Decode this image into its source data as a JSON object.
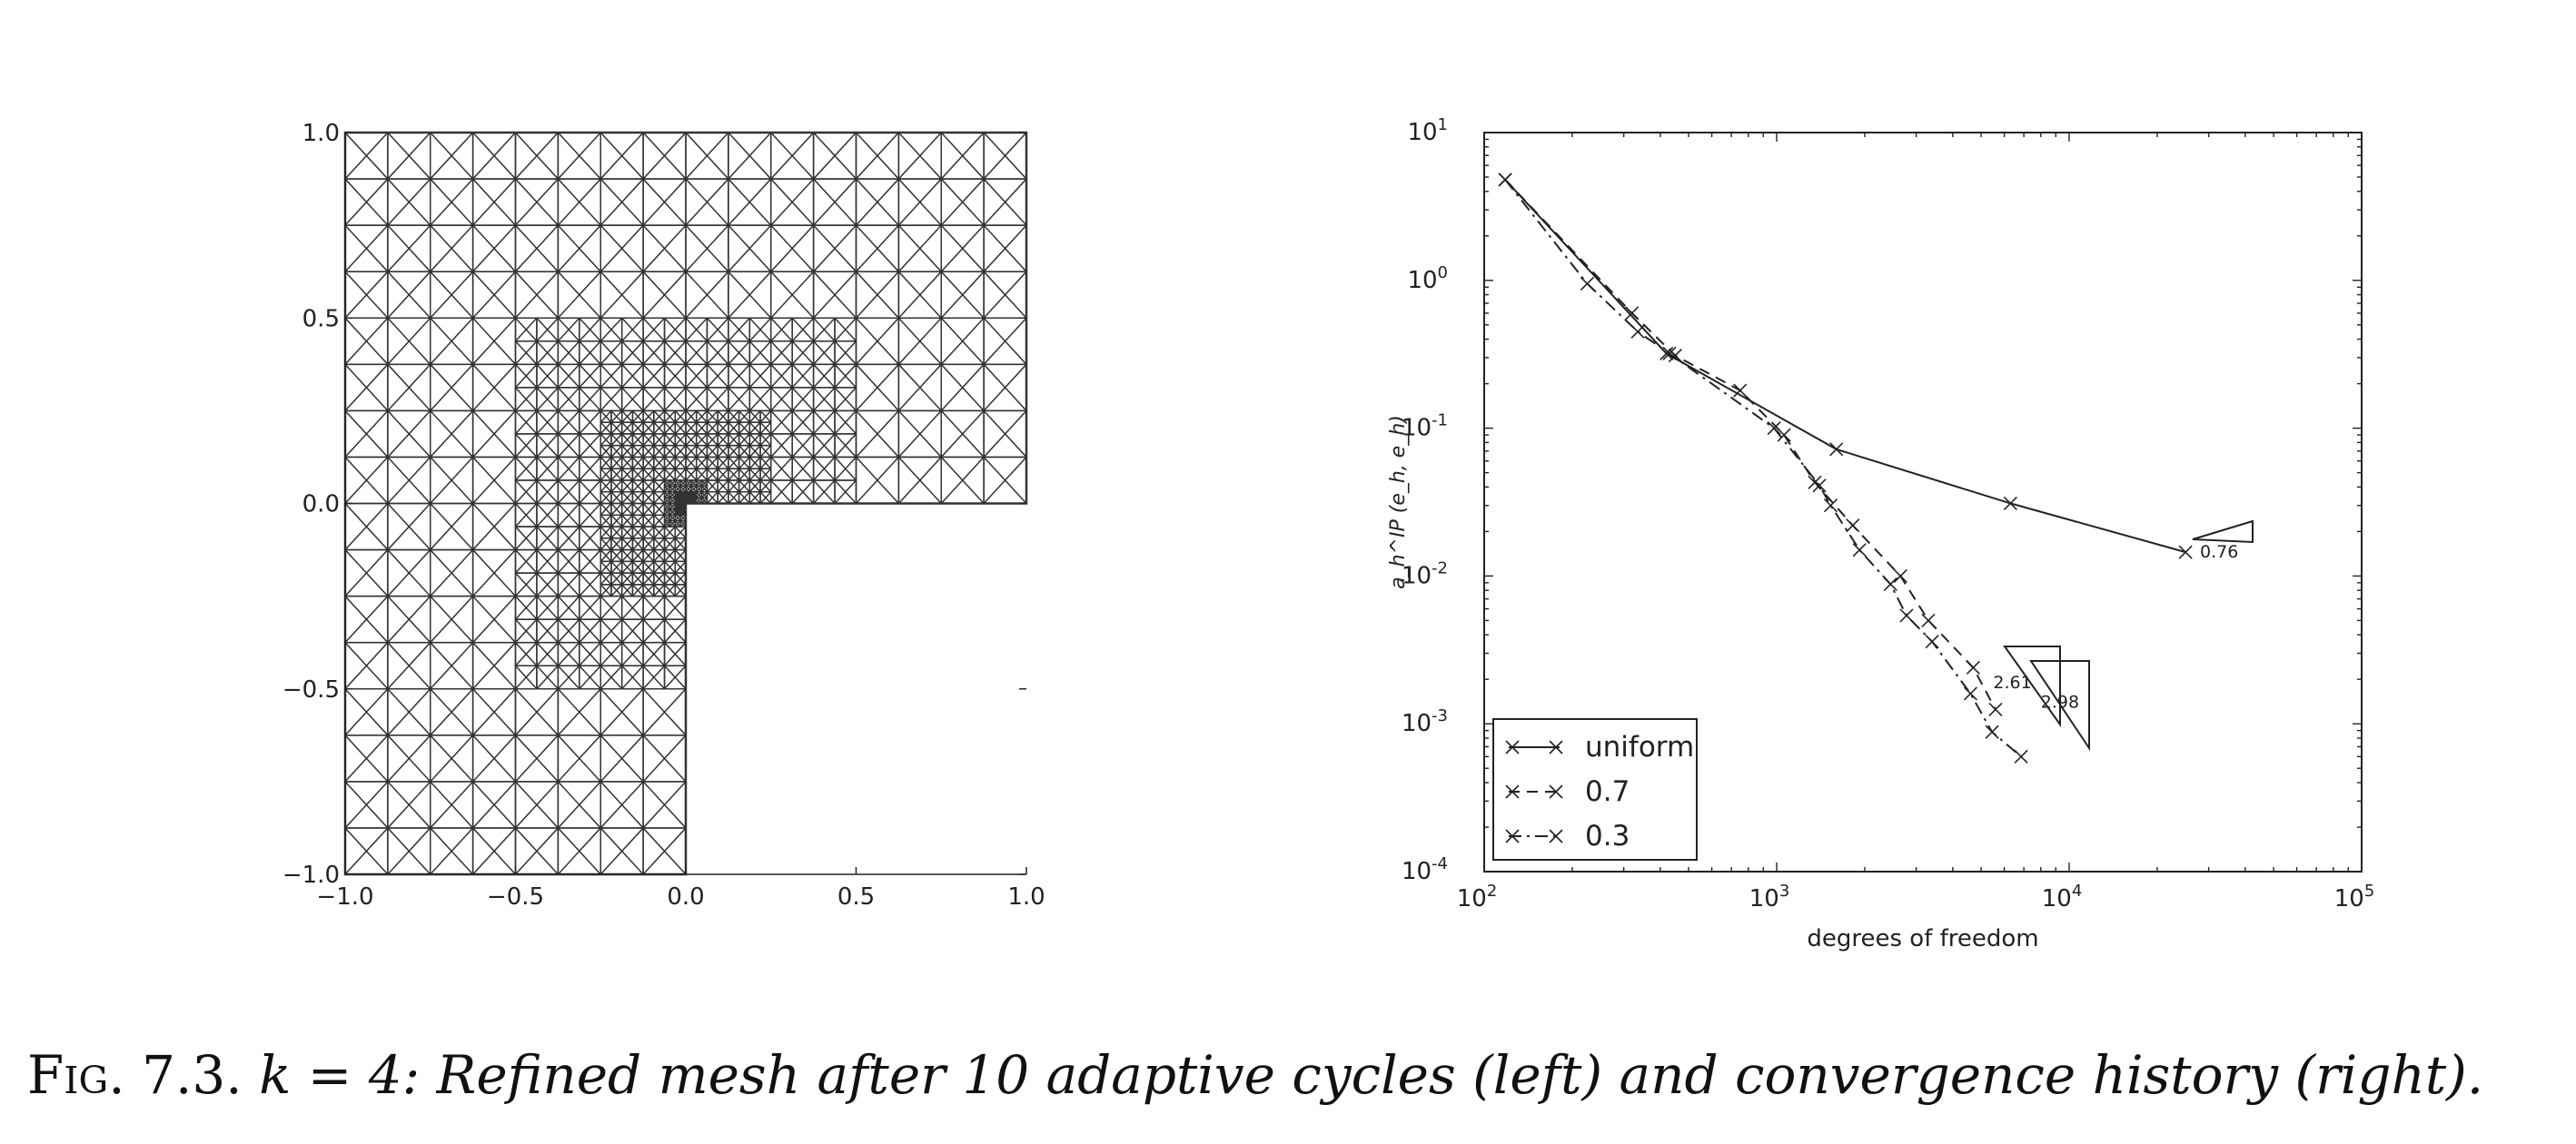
{
  "caption": {
    "label": "Fig. 7.3.",
    "text": "k = 4: Refined mesh after 10 adaptive cycles (left) and convergence history (right)."
  },
  "chart_data": [
    {
      "type": "mesh",
      "xlim": [
        -1.0,
        1.0
      ],
      "ylim": [
        -1.0,
        1.0
      ],
      "xticks": [
        "−1.0",
        "−0.5",
        "0.0",
        "0.5",
        "1.0"
      ],
      "yticks": [
        "−1.0",
        "−0.5",
        "0.0",
        "0.5",
        "1.0"
      ],
      "domain": "L-shaped",
      "refined_point": [
        0.0,
        0.0
      ]
    },
    {
      "type": "line",
      "xscale": "log",
      "yscale": "log",
      "xlim": [
        100,
        100000
      ],
      "ylim": [
        0.0001,
        10
      ],
      "xlabel": "degrees of freedom",
      "ylabel": "a_h^IP (e_h, e_h)",
      "legend_position": "lower-left",
      "xticks": [
        {
          "base": "10",
          "exp": "2"
        },
        {
          "base": "10",
          "exp": "3"
        },
        {
          "base": "10",
          "exp": "4"
        },
        {
          "base": "10",
          "exp": "5"
        }
      ],
      "yticks": [
        {
          "base": "10",
          "exp": "-4"
        },
        {
          "base": "10",
          "exp": "-3"
        },
        {
          "base": "10",
          "exp": "-2"
        },
        {
          "base": "10",
          "exp": "-1"
        },
        {
          "base": "10",
          "exp": "0"
        },
        {
          "base": "10",
          "exp": "1"
        }
      ],
      "series": [
        {
          "name": "uniform",
          "style": "solid",
          "x": [
            118,
            420,
            1600,
            6300,
            25000
          ],
          "y": [
            4.8,
            0.32,
            0.072,
            0.031,
            0.0145
          ]
        },
        {
          "name": "0.7",
          "style": "dashed",
          "x": [
            118,
            320,
            450,
            750,
            1060,
            1350,
            1820,
            2650,
            3300,
            4700,
            5600
          ],
          "y": [
            4.8,
            0.6,
            0.31,
            0.18,
            0.09,
            0.043,
            0.022,
            0.01,
            0.005,
            0.0024,
            0.00125
          ]
        },
        {
          "name": "0.3",
          "style": "dashdot",
          "x": [
            118,
            225,
            335,
            430,
            980,
            1400,
            1530,
            1920,
            2450,
            2780,
            3400,
            4600,
            5450,
            6850
          ],
          "y": [
            4.8,
            0.95,
            0.45,
            0.32,
            0.1,
            0.041,
            0.03,
            0.015,
            0.0088,
            0.0054,
            0.0036,
            0.0016,
            0.00088,
            0.0006
          ]
        }
      ],
      "annotations": [
        {
          "text": "0.76",
          "x": 28000,
          "y": 0.0145
        },
        {
          "text": "2.61",
          "x": 5500,
          "y": 0.0019
        },
        {
          "text": "2.98",
          "x": 8000,
          "y": 0.0014
        }
      ]
    }
  ]
}
